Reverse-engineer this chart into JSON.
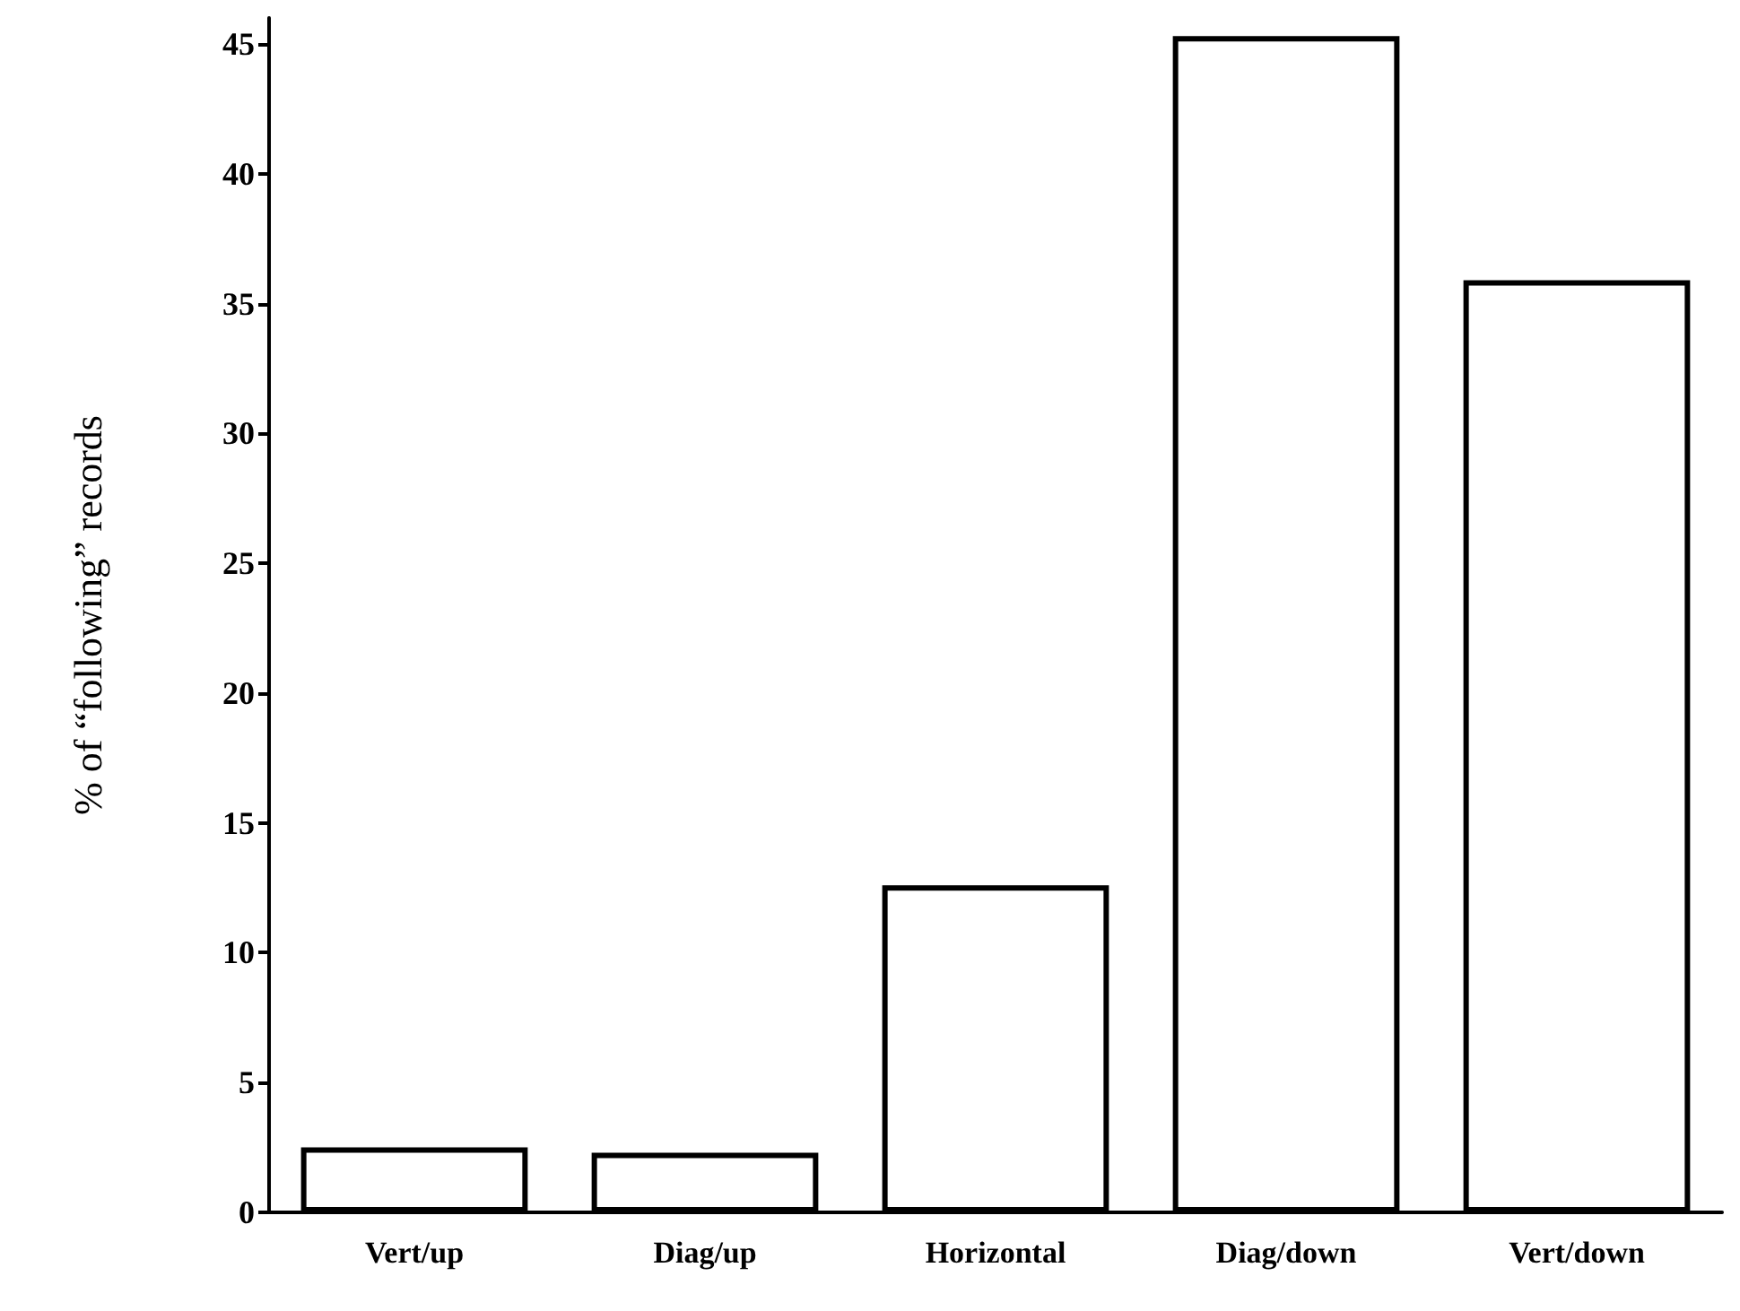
{
  "chart_data": {
    "type": "bar",
    "ylabel": "% of “following” records",
    "categories": [
      "Vert/up",
      "Diag/up",
      "Horizontal",
      "Diag/down",
      "Vert/down"
    ],
    "values": [
      2.5,
      2.3,
      12.6,
      45.3,
      35.9
    ],
    "color": "#ffffff",
    "ylim": [
      0,
      46
    ],
    "yticks": [
      0,
      5,
      10,
      15,
      20,
      25,
      30,
      35,
      40,
      45
    ],
    "grid": false
  }
}
